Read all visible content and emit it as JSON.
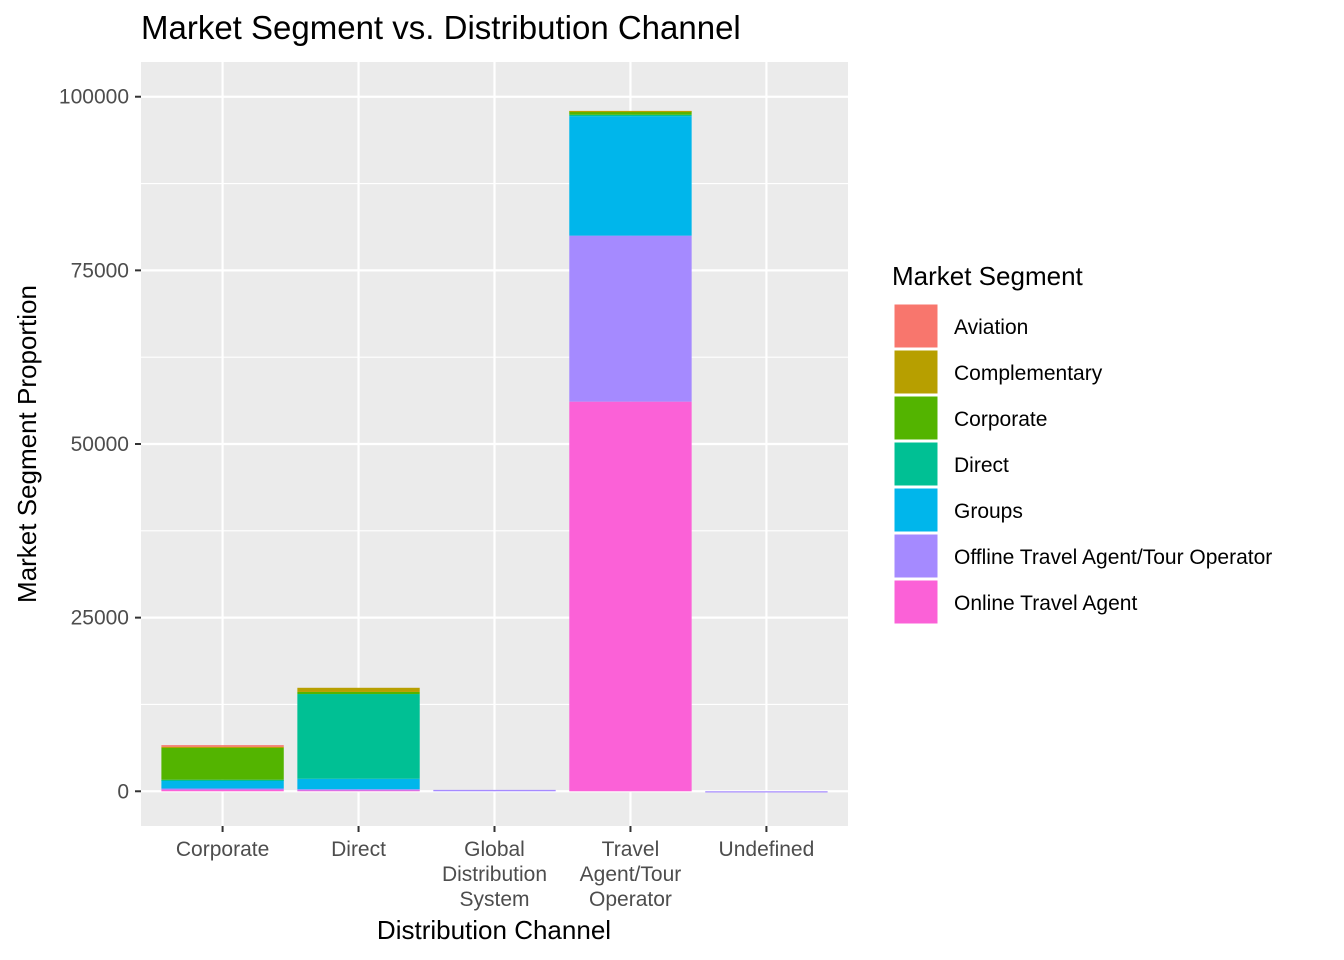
{
  "chart_data": {
    "type": "bar",
    "stacked": true,
    "title": "Market Segment vs. Distribution Channel",
    "xlabel": "Distribution Channel",
    "ylabel": "Market Segment Proportion",
    "ylim": [
      -5000,
      105000
    ],
    "y_ticks": [
      0,
      25000,
      50000,
      75000,
      100000
    ],
    "y_tick_labels": [
      "0",
      "25000",
      "50000",
      "75000",
      "100000"
    ],
    "categories": [
      "Corporate",
      "Direct",
      "Global Distribution System",
      "Travel Agent/Tour Operator",
      "Undefined"
    ],
    "category_tick_lines": [
      [
        "Corporate"
      ],
      [
        "Direct"
      ],
      [
        "Global",
        "Distribution",
        "System"
      ],
      [
        "Travel",
        "Agent/Tour",
        "Operator"
      ],
      [
        "Undefined"
      ]
    ],
    "legend": {
      "title": "Market Segment",
      "position": "right"
    },
    "grid": true,
    "series": [
      {
        "name": "Aviation",
        "color": "#F8766D",
        "values": [
          230,
          0,
          0,
          0,
          0
        ]
      },
      {
        "name": "Complementary",
        "color": "#B79F00",
        "values": [
          150,
          600,
          0,
          60,
          0
        ]
      },
      {
        "name": "Corporate",
        "color": "#53B400",
        "values": [
          4600,
          300,
          0,
          500,
          0
        ]
      },
      {
        "name": "Direct",
        "color": "#00C094",
        "values": [
          60,
          12200,
          0,
          200,
          0
        ]
      },
      {
        "name": "Groups",
        "color": "#00B6EB",
        "values": [
          1200,
          1500,
          0,
          17200,
          0
        ]
      },
      {
        "name": "Offline Travel Agent/Tour Operator",
        "color": "#A58AFF",
        "values": [
          150,
          100,
          200,
          23900,
          2
        ]
      },
      {
        "name": "Online Travel Agent",
        "color": "#FB61D7",
        "values": [
          250,
          200,
          0,
          56100,
          0
        ]
      }
    ]
  }
}
